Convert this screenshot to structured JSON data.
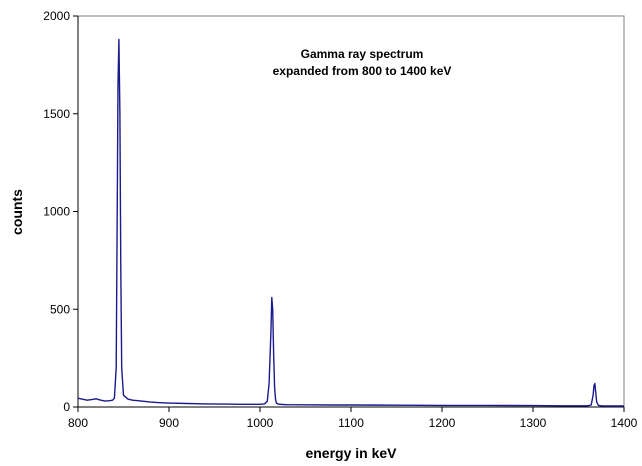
{
  "chart_data": {
    "type": "line",
    "title": "",
    "annotation_lines": [
      "Gamma ray spectrum",
      "expanded from 800 to 1400 keV"
    ],
    "xlabel": "energy in keV",
    "ylabel": "counts",
    "xlim": [
      800,
      1400
    ],
    "ylim": [
      0,
      2000
    ],
    "xticks": [
      800,
      900,
      1000,
      1100,
      1200,
      1300,
      1400
    ],
    "yticks": [
      0,
      500,
      1000,
      1500,
      2000
    ],
    "grid": false,
    "line_color": "#1a1a8c",
    "series": [
      {
        "x": [
          800,
          805,
          810,
          815,
          820,
          825,
          830,
          835,
          838,
          840,
          842,
          843,
          844,
          845,
          846,
          847,
          848,
          850,
          855,
          860,
          870,
          880,
          890,
          900,
          920,
          940,
          960,
          980,
          1000,
          1005,
          1008,
          1010,
          1012,
          1013,
          1014,
          1015,
          1016,
          1017,
          1018,
          1020,
          1025,
          1030,
          1050,
          1080,
          1100,
          1150,
          1200,
          1250,
          1300,
          1330,
          1350,
          1360,
          1364,
          1366,
          1367,
          1368,
          1369,
          1370,
          1372,
          1375,
          1380,
          1390,
          1400
        ],
        "y": [
          45,
          40,
          35,
          38,
          42,
          35,
          30,
          32,
          35,
          45,
          200,
          900,
          1650,
          1880,
          1500,
          700,
          200,
          60,
          40,
          35,
          30,
          25,
          22,
          20,
          18,
          16,
          15,
          14,
          14,
          16,
          30,
          120,
          380,
          560,
          500,
          280,
          100,
          40,
          20,
          15,
          13,
          12,
          11,
          10,
          10,
          9,
          8,
          8,
          7,
          6,
          6,
          6,
          10,
          60,
          110,
          120,
          70,
          25,
          8,
          6,
          5,
          5,
          5
        ]
      }
    ]
  }
}
